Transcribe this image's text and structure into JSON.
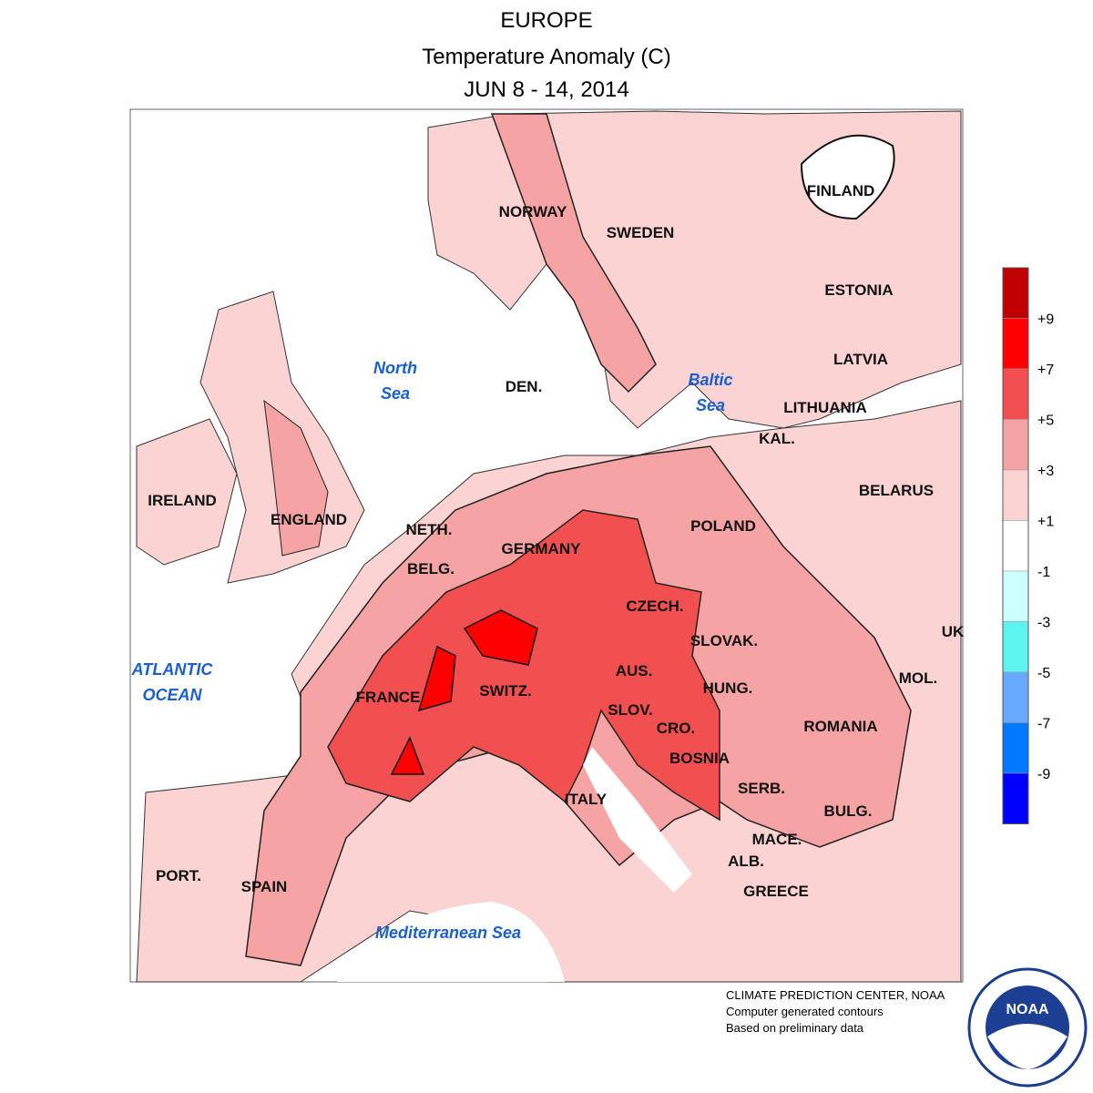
{
  "header": {
    "title": "EUROPE",
    "subtitle": "Temperature Anomaly (C)",
    "period": "JUN 8 - 14, 2014"
  },
  "countries": [
    "NORWAY",
    "SWEDEN",
    "FINLAND",
    "ESTONIA",
    "LATVIA",
    "LITHUANIA",
    "KAL.",
    "BELARUS",
    "POLAND",
    "DEN.",
    "IRELAND",
    "ENGLAND",
    "NETH.",
    "GERMANY",
    "BELG.",
    "CZECH.",
    "SLOVAK.",
    "UK",
    "FRANCE",
    "SWITZ.",
    "AUS.",
    "HUNG.",
    "MOL.",
    "SLOV.",
    "CRO.",
    "ROMANIA",
    "BOSNIA",
    "SERB.",
    "ITALY",
    "BULG.",
    "MACE.",
    "ALB.",
    "GREECE",
    "PORT.",
    "SPAIN"
  ],
  "seas": [
    [
      "North",
      "Sea"
    ],
    [
      "Baltic",
      "Sea"
    ],
    [
      "ATLANTIC",
      "OCEAN"
    ],
    [
      "Mediterranean Sea"
    ]
  ],
  "legend": {
    "colors": [
      "#c00000",
      "#ff0000",
      "#f25050",
      "#f6a3a3",
      "#fbd3d3",
      "#ffffff",
      "#ccffff",
      "#5ef5f0",
      "#66aaff",
      "#0078ff",
      "#0000ff"
    ],
    "ticks": [
      "+9",
      "+7",
      "+5",
      "+3",
      "+1",
      "-1",
      "-3",
      "-5",
      "-7",
      "-9"
    ]
  },
  "credits": [
    "CLIMATE PREDICTION CENTER, NOAA",
    "Computer generated contours",
    "Based on preliminary data"
  ],
  "logo": "NOAA"
}
